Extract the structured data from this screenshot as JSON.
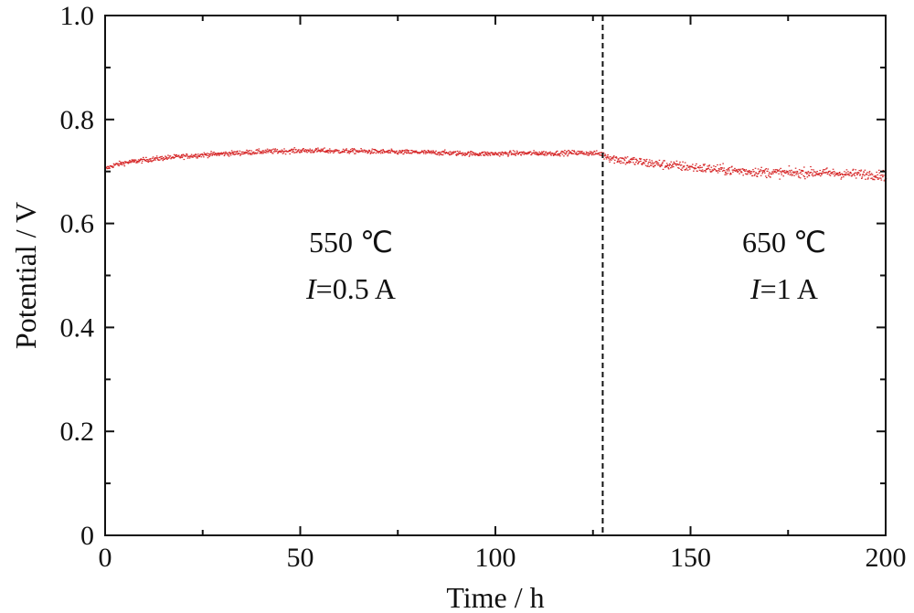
{
  "chart_data": {
    "type": "scatter",
    "xlabel": "Time / h",
    "ylabel": "Potential / V",
    "xlim": [
      0,
      200
    ],
    "ylim": [
      0,
      1.0
    ],
    "x_ticks": [
      "0",
      "50",
      "100",
      "150",
      "200"
    ],
    "y_ticks": [
      "0",
      "0.2",
      "0.4",
      "0.6",
      "0.8",
      "1.0"
    ],
    "grid": false,
    "series_color": "#d62728",
    "divider_x": 127.5,
    "series": [
      {
        "x": [
          0,
          2,
          5,
          10,
          15,
          20,
          25,
          30,
          35,
          40,
          45,
          50,
          55,
          60,
          65,
          70,
          75,
          80,
          85,
          90,
          95,
          100,
          105,
          110,
          115,
          120,
          125,
          127,
          130,
          135,
          140,
          145,
          150,
          155,
          160,
          165,
          170,
          175,
          180,
          185,
          190,
          195,
          200
        ],
        "values": [
          0.705,
          0.712,
          0.717,
          0.722,
          0.726,
          0.729,
          0.732,
          0.734,
          0.736,
          0.738,
          0.739,
          0.74,
          0.74,
          0.739,
          0.739,
          0.738,
          0.737,
          0.737,
          0.736,
          0.735,
          0.734,
          0.734,
          0.735,
          0.735,
          0.735,
          0.736,
          0.735,
          0.734,
          0.725,
          0.72,
          0.715,
          0.712,
          0.708,
          0.705,
          0.702,
          0.7,
          0.698,
          0.697,
          0.698,
          0.697,
          0.695,
          0.695,
          0.692
        ]
      }
    ],
    "annotations": [
      {
        "line1": "550 ℃",
        "line2_var": "I",
        "line2_rest": "=0.5 A",
        "x": 63,
        "y1": 0.545,
        "y2": 0.455
      },
      {
        "line1": "650 ℃",
        "line2_var": "I",
        "line2_rest": "=1 A",
        "x": 174,
        "y1": 0.545,
        "y2": 0.455
      }
    ]
  }
}
